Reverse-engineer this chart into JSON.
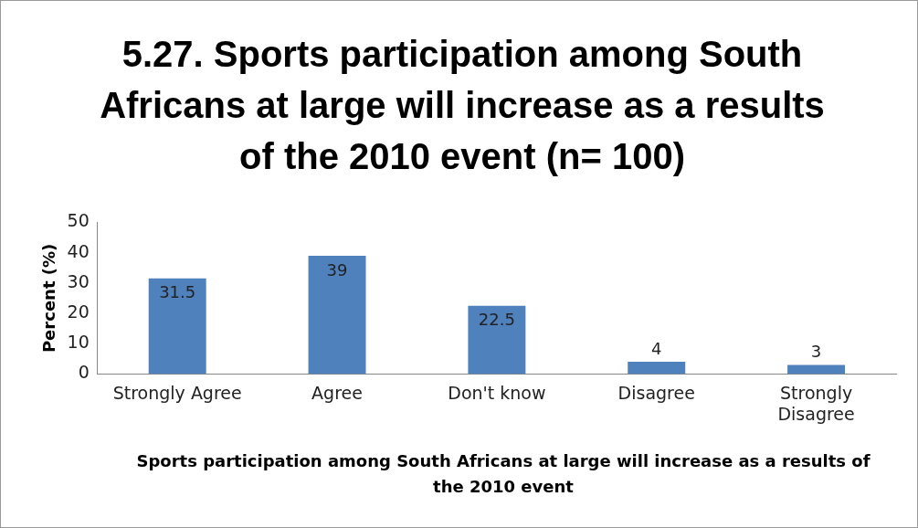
{
  "chart_data": {
    "type": "bar",
    "title": "5.27. Sports participation among South Africans at large will increase as a results of the 2010 event (n= 100)",
    "xlabel": "Sports participation among South Africans at large will increase as a results of the 2010 event",
    "ylabel": "Percent (%)",
    "categories": [
      "Strongly Agree",
      "Agree",
      "Don't know",
      "Disagree",
      "Strongly Disagree"
    ],
    "values": [
      31.5,
      39,
      22.5,
      4,
      3
    ],
    "color": "#4f81bd",
    "ylim": [
      0,
      50
    ],
    "yticks": [
      0,
      10,
      20,
      30,
      40,
      50
    ],
    "grid": false,
    "legend": false,
    "data_labels": true
  }
}
